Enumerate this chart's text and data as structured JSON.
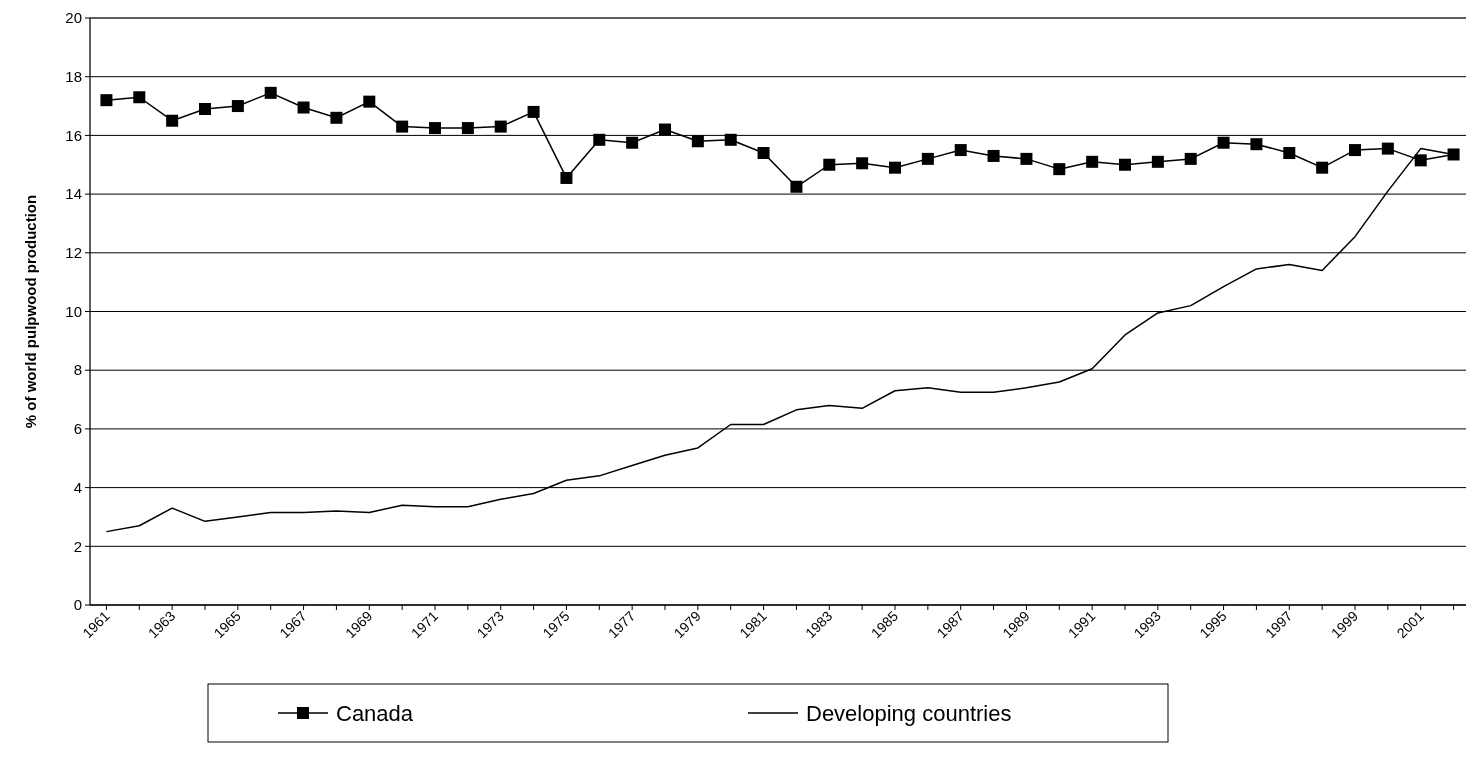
{
  "chart_data": {
    "type": "line",
    "ylabel": "% of world pulpwood production",
    "categories": [
      "1961",
      null,
      "1963",
      null,
      "1965",
      null,
      "1967",
      null,
      "1969",
      null,
      "1971",
      null,
      "1973",
      null,
      "1975",
      null,
      "1977",
      null,
      "1979",
      null,
      "1981",
      null,
      "1983",
      null,
      "1985",
      null,
      "1987",
      null,
      "1989",
      null,
      "1991",
      null,
      "1993",
      null,
      "1995",
      null,
      "1997",
      null,
      "1999",
      null,
      "2001",
      null
    ],
    "series": [
      {
        "name": "Canada",
        "color": "#000000",
        "marker": "square",
        "values": [
          17.2,
          17.3,
          16.5,
          16.9,
          17.0,
          17.45,
          16.95,
          16.6,
          17.15,
          16.3,
          16.25,
          16.25,
          16.3,
          16.8,
          14.55,
          15.85,
          15.75,
          16.2,
          15.8,
          15.85,
          15.4,
          14.25,
          15.0,
          15.05,
          14.9,
          15.2,
          15.5,
          15.3,
          15.2,
          14.85,
          15.1,
          15.0,
          15.1,
          15.2,
          15.75,
          15.7,
          15.4,
          14.9,
          15.5,
          15.55,
          15.15,
          15.35
        ]
      },
      {
        "name": "Developing countries",
        "color": "#000000",
        "marker": "none",
        "values": [
          2.5,
          2.7,
          3.3,
          2.85,
          3.0,
          3.15,
          3.15,
          3.2,
          3.15,
          3.4,
          3.35,
          3.35,
          3.6,
          3.8,
          4.25,
          4.4,
          4.75,
          5.1,
          5.35,
          6.15,
          6.15,
          6.65,
          6.8,
          6.7,
          7.3,
          7.4,
          7.25,
          7.25,
          7.4,
          7.6,
          8.05,
          9.2,
          9.95,
          10.2,
          10.85,
          11.45,
          11.6,
          11.4,
          12.55,
          14.1,
          15.55,
          15.35
        ]
      }
    ],
    "ylim": [
      0,
      20
    ],
    "yticks": [
      0,
      2,
      4,
      6,
      8,
      10,
      12,
      14,
      16,
      18,
      20
    ],
    "grid": "y",
    "legend": "bottom"
  }
}
